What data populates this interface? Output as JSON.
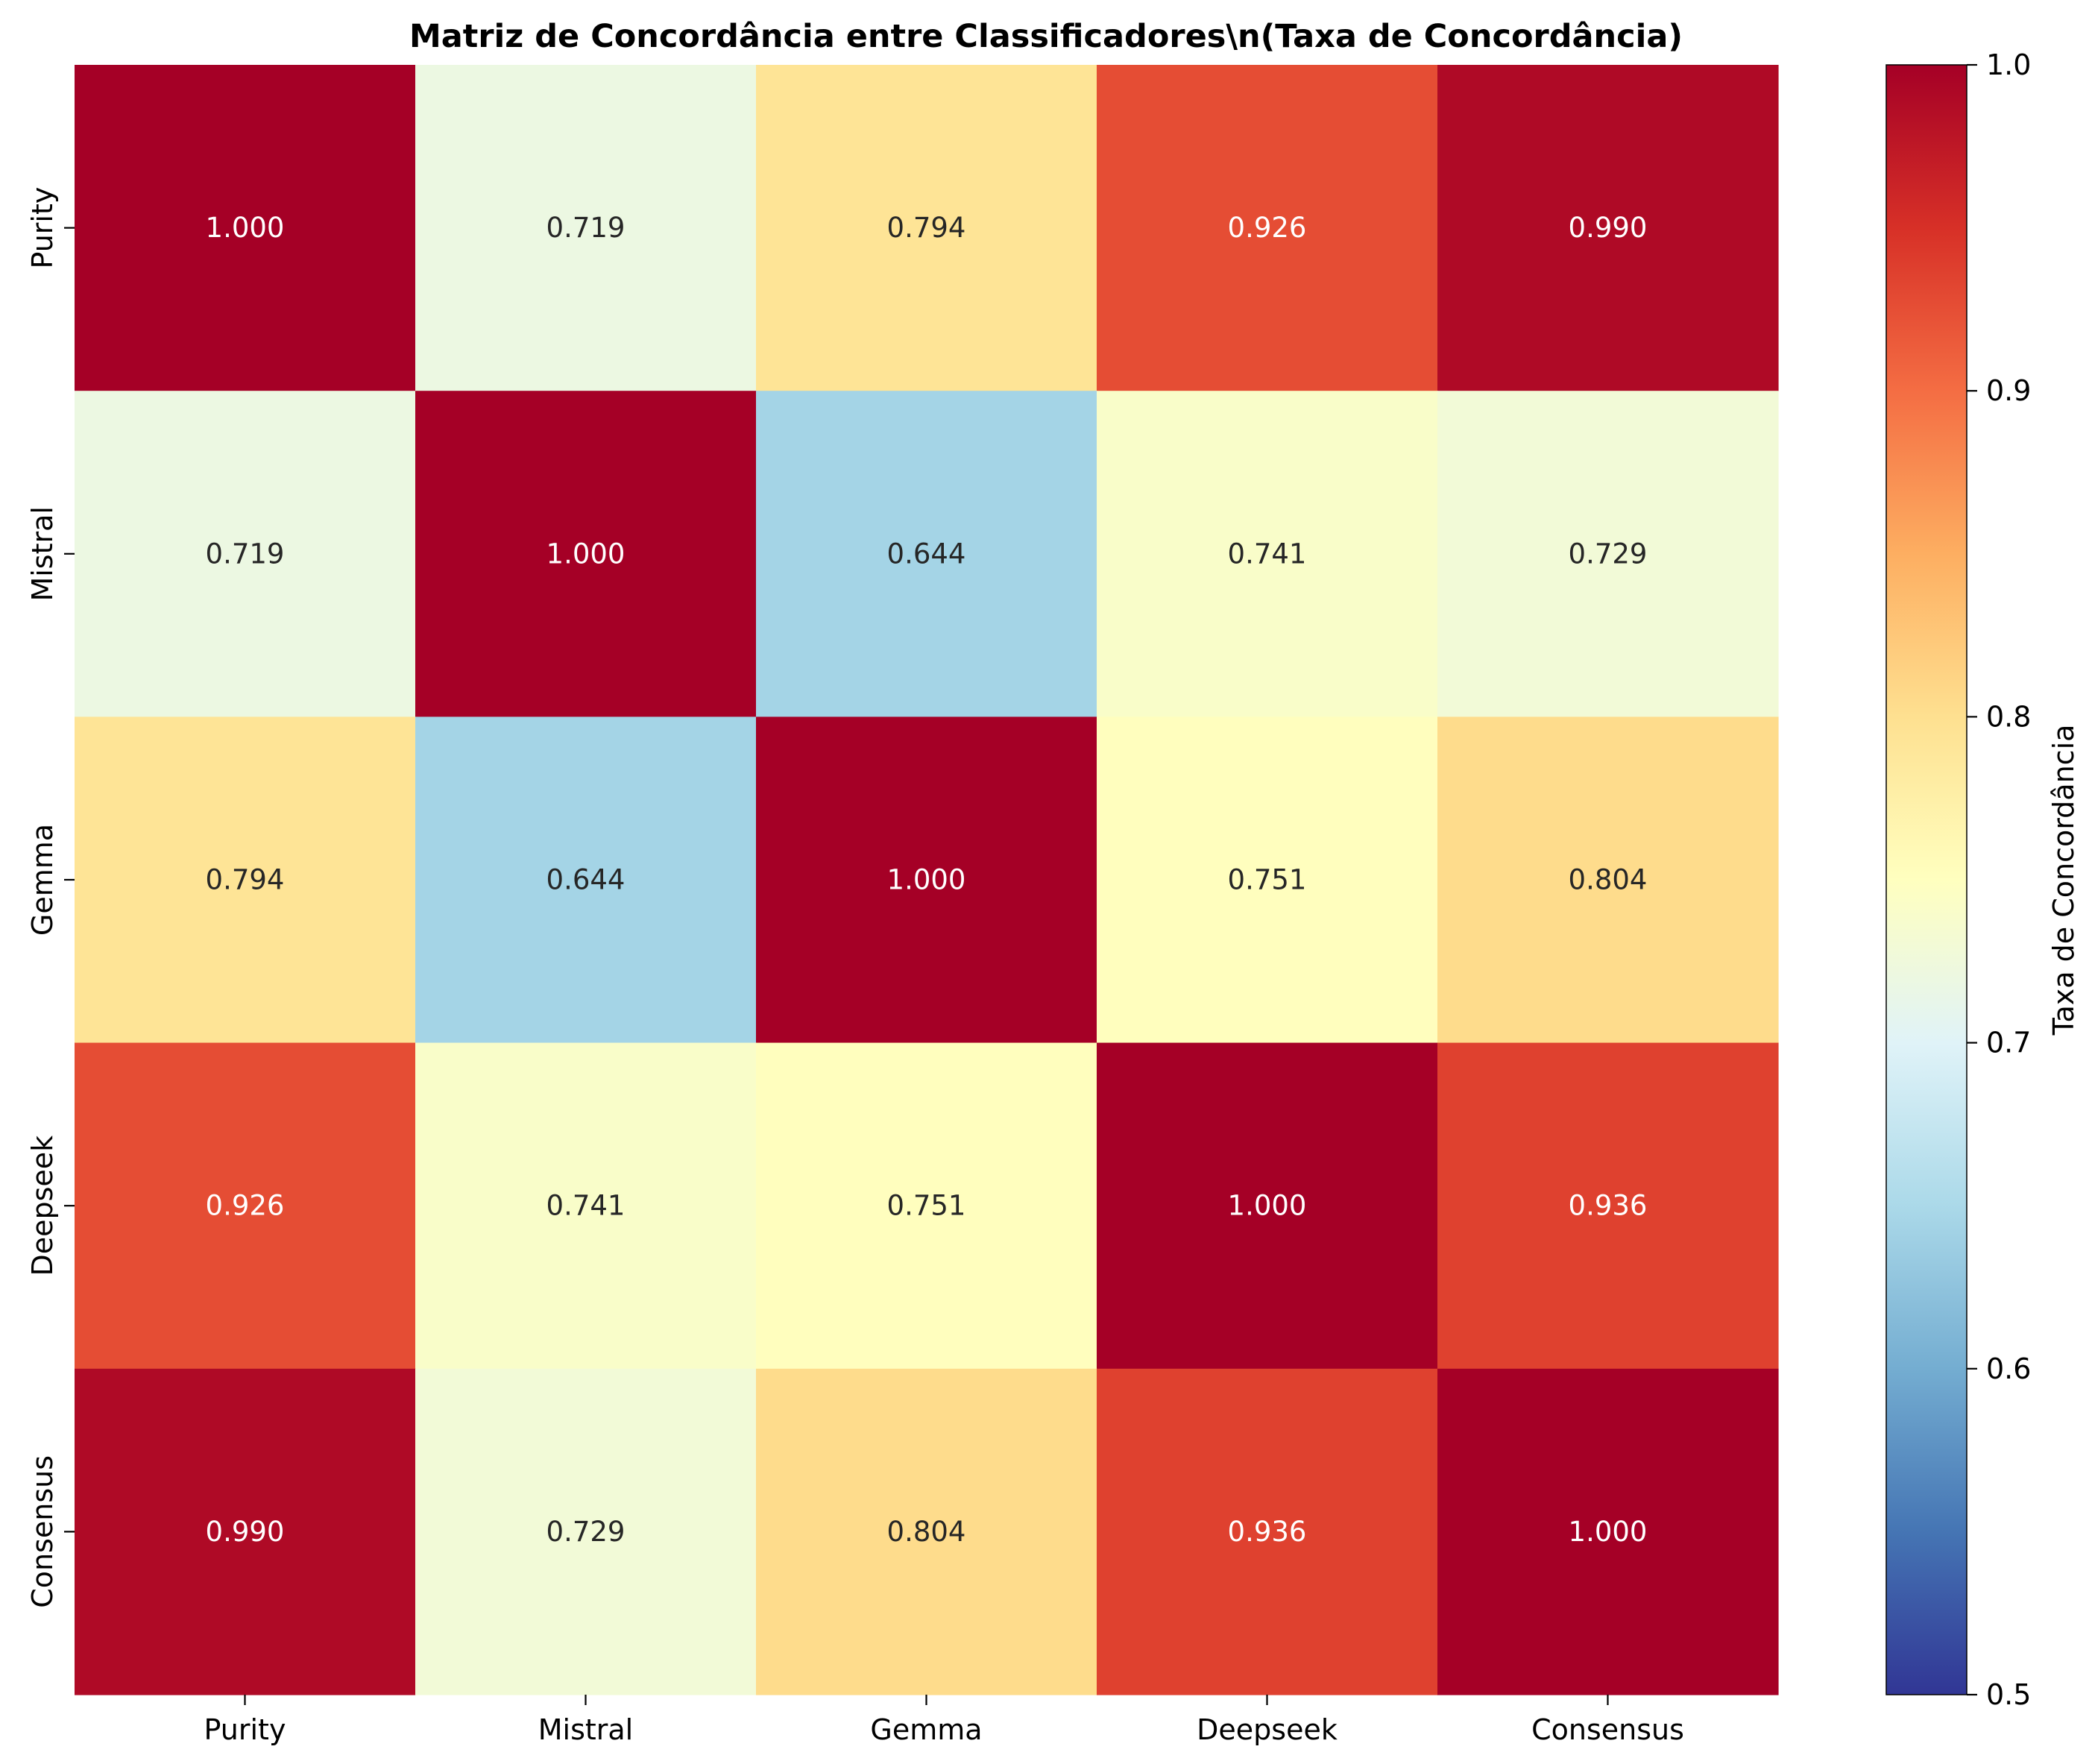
{
  "chart_data": {
    "type": "heatmap",
    "title": "Matriz de Concordância entre Classificadores\\n(Taxa de Concordância)",
    "row_labels": [
      "Purity",
      "Mistral",
      "Gemma",
      "Deepseek",
      "Consensus"
    ],
    "col_labels": [
      "Purity",
      "Mistral",
      "Gemma",
      "Deepseek",
      "Consensus"
    ],
    "values": [
      [
        1.0,
        0.719,
        0.794,
        0.926,
        0.99
      ],
      [
        0.719,
        1.0,
        0.644,
        0.741,
        0.729
      ],
      [
        0.794,
        0.644,
        1.0,
        0.751,
        0.804
      ],
      [
        0.926,
        0.741,
        0.751,
        1.0,
        0.936
      ],
      [
        0.99,
        0.729,
        0.804,
        0.936,
        1.0
      ]
    ],
    "value_format": "0.000",
    "colormap": "RdYlBu_r",
    "colorbar": {
      "label": "Taxa de Concordância",
      "vmin": 0.5,
      "vmax": 1.0,
      "ticks": [
        0.5,
        0.6,
        0.7,
        0.8,
        0.9,
        1.0
      ],
      "tick_labels": [
        "0.5",
        "0.6",
        "0.7",
        "0.8",
        "0.9",
        "1.0"
      ],
      "position": "right"
    },
    "colormap_stops": [
      "#313695",
      "#4575b4",
      "#74add1",
      "#abd9e9",
      "#e0f3f8",
      "#ffffbf",
      "#fee090",
      "#fdae61",
      "#f46d43",
      "#d73027",
      "#a50026"
    ],
    "text_color_dark": "#262626",
    "text_color_light": "#ffffff"
  }
}
